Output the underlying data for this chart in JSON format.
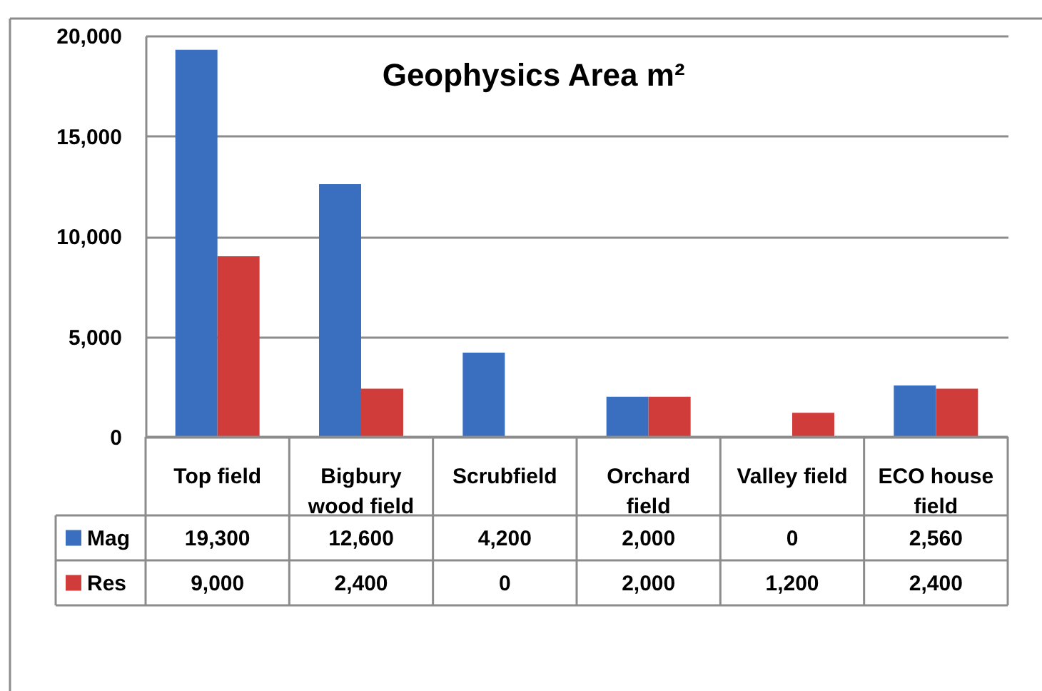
{
  "chart_data": {
    "type": "bar",
    "title": "Geophysics Area m²",
    "categories": [
      "Top field",
      "Bigbury wood field",
      "Scrubfield",
      "Orchard field",
      "Valley field",
      "ECO house field"
    ],
    "series": [
      {
        "name": "Mag",
        "color": "#3a6fbf",
        "values": [
          19300,
          12600,
          4200,
          2000,
          0,
          2560
        ],
        "value_labels": [
          "19,300",
          "12,600",
          "4,200",
          "2,000",
          "0",
          "2,560"
        ]
      },
      {
        "name": "Res",
        "color": "#d03c3a",
        "values": [
          9000,
          2400,
          0,
          2000,
          1200,
          2400
        ],
        "value_labels": [
          "9,000",
          "2,400",
          "0",
          "2,000",
          "1,200",
          "2,400"
        ]
      }
    ],
    "ylim": [
      0,
      20000
    ],
    "yticks": [
      0,
      {
        "value": 5000,
        "label": "5,000"
      },
      {
        "value": 10000,
        "label": "10,000"
      },
      {
        "value": 15000,
        "label": "15,000"
      },
      {
        "value": 20000,
        "label": "20,000"
      }
    ],
    "grid": "y",
    "legend": "bottom"
  }
}
